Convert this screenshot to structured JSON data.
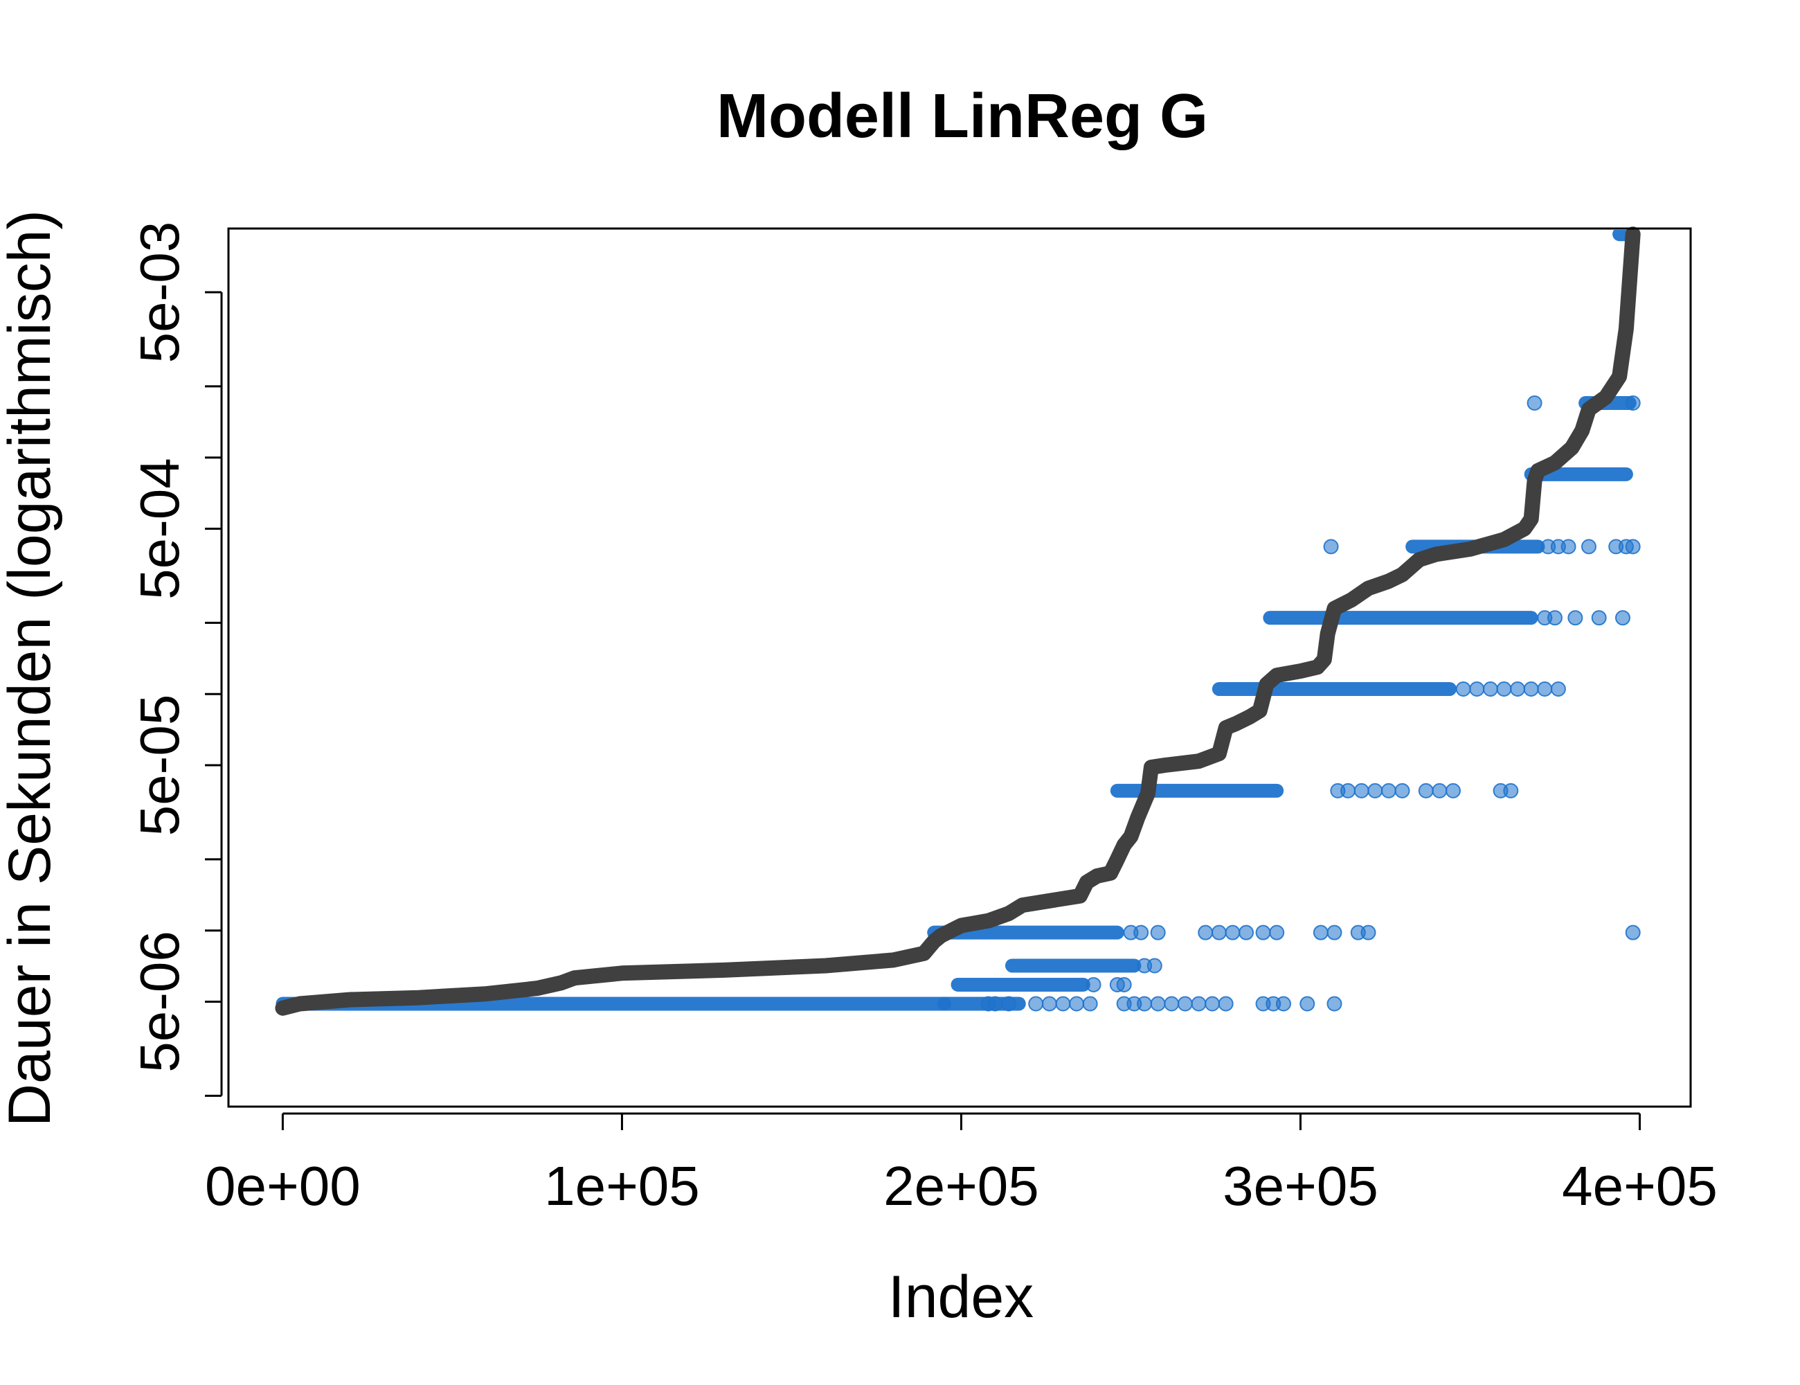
{
  "chart_data": {
    "type": "scatter",
    "title": "Modell LinReg G",
    "xlabel": "Index",
    "ylabel": "Dauer in Sekunden (logarithmisch)",
    "x_ticks": [
      {
        "value": 0,
        "label": "0e+00"
      },
      {
        "value": 100000,
        "label": "1e+05"
      },
      {
        "value": 200000,
        "label": "2e+05"
      },
      {
        "value": 300000,
        "label": "3e+05"
      },
      {
        "value": 400000,
        "label": "4e+05"
      }
    ],
    "y_scale": "log",
    "y_ticks": [
      {
        "value": 2e-06,
        "label": ""
      },
      {
        "value": 5e-06,
        "label": "5e-06"
      },
      {
        "value": 1e-05,
        "label": ""
      },
      {
        "value": 2e-05,
        "label": ""
      },
      {
        "value": 5e-05,
        "label": "5e-05"
      },
      {
        "value": 0.0001,
        "label": ""
      },
      {
        "value": 0.0002,
        "label": ""
      },
      {
        "value": 0.0005,
        "label": "5e-04"
      },
      {
        "value": 0.001,
        "label": ""
      },
      {
        "value": 0.002,
        "label": ""
      },
      {
        "value": 0.005,
        "label": "5e-03"
      },
      {
        "value": 0.01,
        "label": ""
      }
    ],
    "xlim": [
      -16000,
      415000
    ],
    "ylim": [
      1.8e-06,
      0.0093
    ],
    "colors": {
      "actual_line": "#404040",
      "predicted_points": "#1f73cc"
    },
    "series": [
      {
        "kind": "line",
        "role": "sorted actual duration",
        "x": [
          0,
          5000,
          20000,
          40000,
          60000,
          75000,
          82000,
          86000,
          100000,
          130000,
          160000,
          180000,
          189000,
          192000,
          194000,
          200000,
          208000,
          214000,
          218000,
          228000,
          235000,
          237000,
          240000,
          244000,
          246000,
          248000,
          250000,
          252000,
          255000,
          256000,
          260000,
          270000,
          276000,
          278000,
          281000,
          285000,
          288000,
          290000,
          293000,
          300000,
          305000,
          307000,
          308000,
          310000,
          315000,
          320000,
          326000,
          330000,
          335000,
          340000,
          350000,
          360000,
          366000,
          368000,
          369000,
          370000,
          375000,
          380000,
          383000,
          385000,
          390000,
          394000,
          396000,
          398000
        ],
        "y": [
          4.7e-06,
          4.9e-06,
          5.1e-06,
          5.2e-06,
          5.4e-06,
          5.7e-06,
          6e-06,
          6.3e-06,
          6.6e-06,
          6.8e-06,
          7.1e-06,
          7.5e-06,
          8e-06,
          9e-06,
          9.5e-06,
          1.05e-05,
          1.1e-05,
          1.18e-05,
          1.28e-05,
          1.35e-05,
          1.4e-05,
          1.6e-05,
          1.7e-05,
          1.75e-05,
          2e-05,
          2.3e-05,
          2.5e-05,
          3e-05,
          3.8e-05,
          4.9e-05,
          5e-05,
          5.2e-05,
          5.6e-05,
          7.2e-05,
          7.5e-05,
          8e-05,
          8.5e-05,
          0.00011,
          0.00012,
          0.000125,
          0.00013,
          0.00014,
          0.00018,
          0.00023,
          0.00025,
          0.00028,
          0.0003,
          0.00032,
          0.00037,
          0.00039,
          0.00041,
          0.00045,
          0.0005,
          0.00055,
          0.0008,
          0.00088,
          0.00095,
          0.0011,
          0.0013,
          0.0016,
          0.0018,
          0.0022,
          0.0035,
          0.0088
        ]
      },
      {
        "kind": "points",
        "role": "predicted duration",
        "bands": [
          {
            "y": 4.9e-06,
            "segments": [
              [
                0,
                195000
              ],
              [
                195000,
                217000
              ]
            ],
            "scatter": [
              208000,
              210000,
              214000,
              222000,
              226000,
              230000,
              234000,
              238000,
              248000,
              251000,
              254000,
              258000,
              262000,
              266000,
              270000,
              274000,
              278000,
              289000,
              292000,
              295000,
              302000,
              310000
            ]
          },
          {
            "y": 5.9e-06,
            "segments": [
              [
                199000,
                236000
              ]
            ],
            "scatter": [
              239000,
              246000,
              248000
            ]
          },
          {
            "y": 7.1e-06,
            "segments": [
              [
                215000,
                251000
              ]
            ],
            "scatter": [
              254000,
              257000
            ]
          },
          {
            "y": 9.8e-06,
            "segments": [
              [
                192000,
                246000
              ]
            ],
            "scatter": [
              250000,
              253000,
              258000,
              272000,
              276000,
              280000,
              284000,
              289000,
              293000,
              306000,
              310000,
              317000,
              320000,
              398000
            ]
          },
          {
            "y": 3.9e-05,
            "segments": [
              [
                246000,
                293000
              ]
            ],
            "scatter": [
              311000,
              314000,
              318000,
              322000,
              326000,
              330000,
              337000,
              341000,
              345000,
              359000,
              362000
            ]
          },
          {
            "y": 0.000105,
            "segments": [
              [
                276000,
                344000
              ]
            ],
            "scatter": [
              348000,
              352000,
              356000,
              360000,
              364000,
              368000,
              372000,
              376000
            ]
          },
          {
            "y": 0.00021,
            "segments": [
              [
                291000,
                368000
              ]
            ],
            "scatter": [
              372000,
              375000,
              381000,
              388000,
              395000
            ]
          },
          {
            "y": 0.00042,
            "segments": [
              [
                333000,
                370000
              ]
            ],
            "scatter": [
              309000,
              373000,
              376000,
              379000,
              385000,
              393000,
              396000,
              398000
            ]
          },
          {
            "y": 0.00085,
            "segments": [
              [
                368000,
                396000
              ]
            ],
            "scatter": []
          },
          {
            "y": 0.0017,
            "segments": [
              [
                384000,
                397000
              ]
            ],
            "scatter": [
              369000,
              398000
            ]
          },
          {
            "y": 0.0088,
            "segments": [
              [
                394000,
                398000
              ]
            ],
            "scatter": []
          }
        ]
      }
    ]
  }
}
